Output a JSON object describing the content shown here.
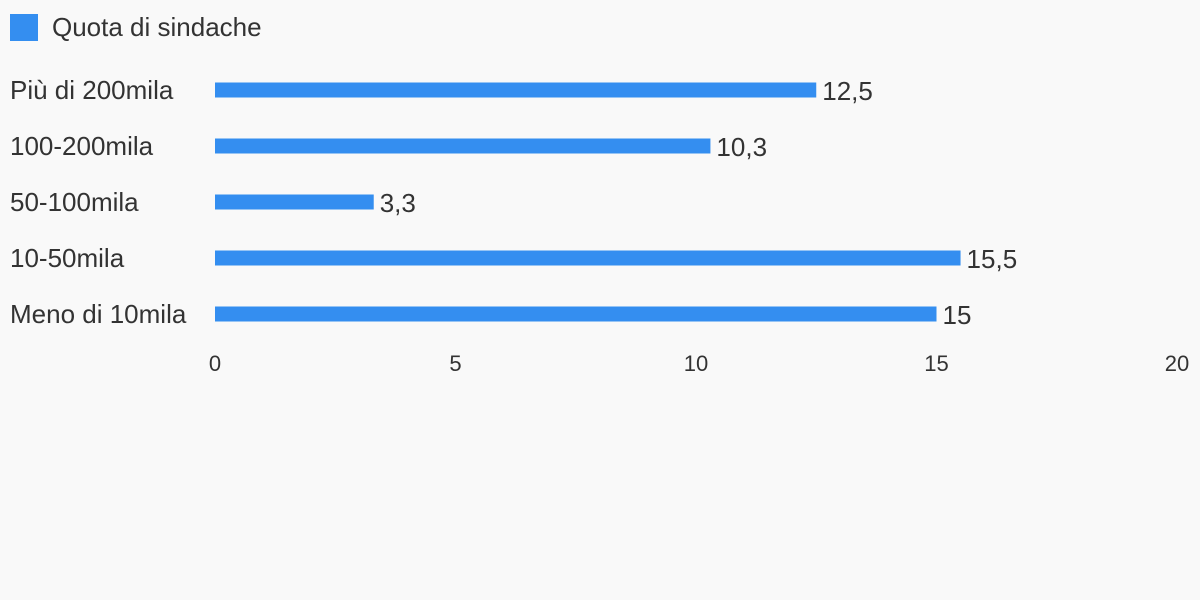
{
  "chart_data": {
    "type": "bar",
    "orientation": "horizontal",
    "categories": [
      "Più di 200mila",
      "100-200mila",
      "50-100mila",
      "10-50mila",
      "Meno di 10mila"
    ],
    "series": [
      {
        "name": "Quota di sindache",
        "values": [
          12.5,
          10.3,
          3.3,
          15.5,
          15
        ],
        "value_labels": [
          "12,5",
          "10,3",
          "3,3",
          "15,5",
          "15"
        ],
        "color": "#348ef0"
      }
    ],
    "xlim": [
      0,
      20
    ],
    "x_ticks": [
      0,
      5,
      10,
      15,
      20
    ],
    "x_tick_labels": [
      "0",
      "5",
      "10",
      "15",
      "20"
    ],
    "grid": false,
    "legend_position": "top-left"
  }
}
